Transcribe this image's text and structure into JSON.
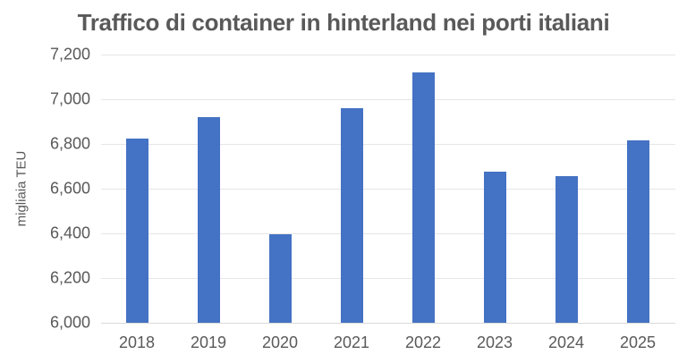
{
  "title": "Traffico di container in hinterland nei porti italiani",
  "chart_data": {
    "type": "bar",
    "title": "Traffico di container in hinterland nei porti italiani",
    "xlabel": "",
    "ylabel": "migliaia TEU",
    "categories": [
      "2018",
      "2019",
      "2020",
      "2021",
      "2022",
      "2023",
      "2024",
      "2025"
    ],
    "values": [
      6824,
      6921,
      6395,
      6961,
      7120,
      6675,
      6657,
      6817
    ],
    "ylim": [
      6000,
      7200
    ],
    "yticks": [
      "6,000",
      "6,200",
      "6,400",
      "6,600",
      "6,800",
      "7,000",
      "7,200"
    ],
    "ytick_values": [
      6000,
      6200,
      6400,
      6600,
      6800,
      7000,
      7200
    ],
    "grid": true,
    "legend": null,
    "bar_color": "#4472C4"
  }
}
